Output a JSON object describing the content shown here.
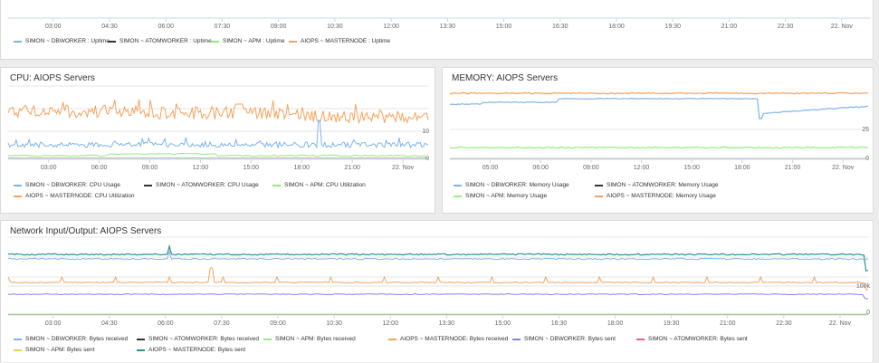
{
  "colors": {
    "blue": "#7cb5ec",
    "black": "#333333",
    "green": "#90ed7d",
    "orange": "#f7a35c",
    "purple": "#8085e9",
    "red": "#f15c80",
    "yellow": "#e4d354",
    "teal": "#2b908f"
  },
  "chart_data": [
    {
      "id": "uptime",
      "type": "line",
      "title": "",
      "x_ticks": [
        "03:00",
        "04:30",
        "06:00",
        "07:30",
        "09:00",
        "10:30",
        "12:00",
        "13:30",
        "15:00",
        "16:30",
        "18:00",
        "19:30",
        "21:00",
        "22:30",
        "22. Nov"
      ],
      "y_ticks": [],
      "series": [
        {
          "name": "SIMON ~ DBWORKER : Uptime",
          "color": "#7cb5ec"
        },
        {
          "name": "SIMON ~ ATOMWORKER : Uptime",
          "color": "#333333"
        },
        {
          "name": "SIMON ~ APM : Uptime",
          "color": "#90ed7d"
        },
        {
          "name": "AIOPS ~ MASTERNODE : Uptime",
          "color": "#f7a35c"
        }
      ]
    },
    {
      "id": "cpu",
      "type": "line",
      "title": "CPU: AIOPS Servers",
      "x_ticks": [
        "03:00",
        "06:00",
        "09:00",
        "12:00",
        "15:00",
        "18:00",
        "21:00",
        "22. Nov"
      ],
      "y_ticks": [
        "10",
        "0"
      ],
      "ylim": [
        0,
        20
      ],
      "series": [
        {
          "name": "SIMON ~ DBWORKER: CPU Usage",
          "color": "#7cb5ec",
          "approx_level": 3
        },
        {
          "name": "SIMON ~ ATOMWORKER: CPU Usage",
          "color": "#333333",
          "approx_level": 0
        },
        {
          "name": "SIMON ~ APM: CPU Utilization",
          "color": "#90ed7d",
          "approx_level": 0.5
        },
        {
          "name": "AIOPS ~ MASTERNODE: CPU Utilization",
          "color": "#f7a35c",
          "approx_level": 15
        }
      ]
    },
    {
      "id": "memory",
      "type": "line",
      "title": "MEMORY: AIOPS Servers",
      "x_ticks": [
        "05:00",
        "06:00",
        "09:00",
        "12:00",
        "15:00",
        "18:00",
        "21:00",
        "22. Nov"
      ],
      "y_ticks": [
        "25",
        "0"
      ],
      "ylim": [
        0,
        50
      ],
      "series": [
        {
          "name": "SIMON ~ DBWORKER: Memory Usage",
          "color": "#7cb5ec",
          "approx_level": 40
        },
        {
          "name": "SIMON ~ ATOMWORKER: Memory Usage",
          "color": "#333333",
          "approx_level": 0
        },
        {
          "name": "SIMON ~ APM: Memory Usage",
          "color": "#90ed7d",
          "approx_level": 10
        },
        {
          "name": "AIOPS ~ MASTERNODE: Memory Usage",
          "color": "#f7a35c",
          "approx_level": 48
        }
      ]
    },
    {
      "id": "network",
      "type": "line",
      "title": "Network Input/Output: AIOPS Servers",
      "x_ticks": [
        "03:00",
        "04:30",
        "06:00",
        "07:30",
        "09:00",
        "10:30",
        "12:00",
        "13:30",
        "15:00",
        "16:30",
        "18:00",
        "19:30",
        "21:00",
        "22:30",
        "22. Nov"
      ],
      "y_ticks": [
        "100k",
        "0"
      ],
      "series": [
        {
          "name": "SIMON ~ DBWORKER: Bytes received",
          "color": "#7cb5ec"
        },
        {
          "name": "SIMON ~ ATOMWORKER: Bytes received",
          "color": "#333333"
        },
        {
          "name": "SIMON ~ APM: Bytes received",
          "color": "#90ed7d"
        },
        {
          "name": "AIOPS ~ MASTERNODE: Bytes received",
          "color": "#f7a35c"
        },
        {
          "name": "SIMON ~ DBWORKER: Bytes sent",
          "color": "#8085e9"
        },
        {
          "name": "SIMON ~ ATOMWORKER: Bytes sent",
          "color": "#f15c80"
        },
        {
          "name": "SIMON ~ APM: Bytes sent",
          "color": "#e4d354"
        },
        {
          "name": "AIOPS ~ MASTERNODE: Bytes sent",
          "color": "#2b908f"
        }
      ]
    }
  ]
}
